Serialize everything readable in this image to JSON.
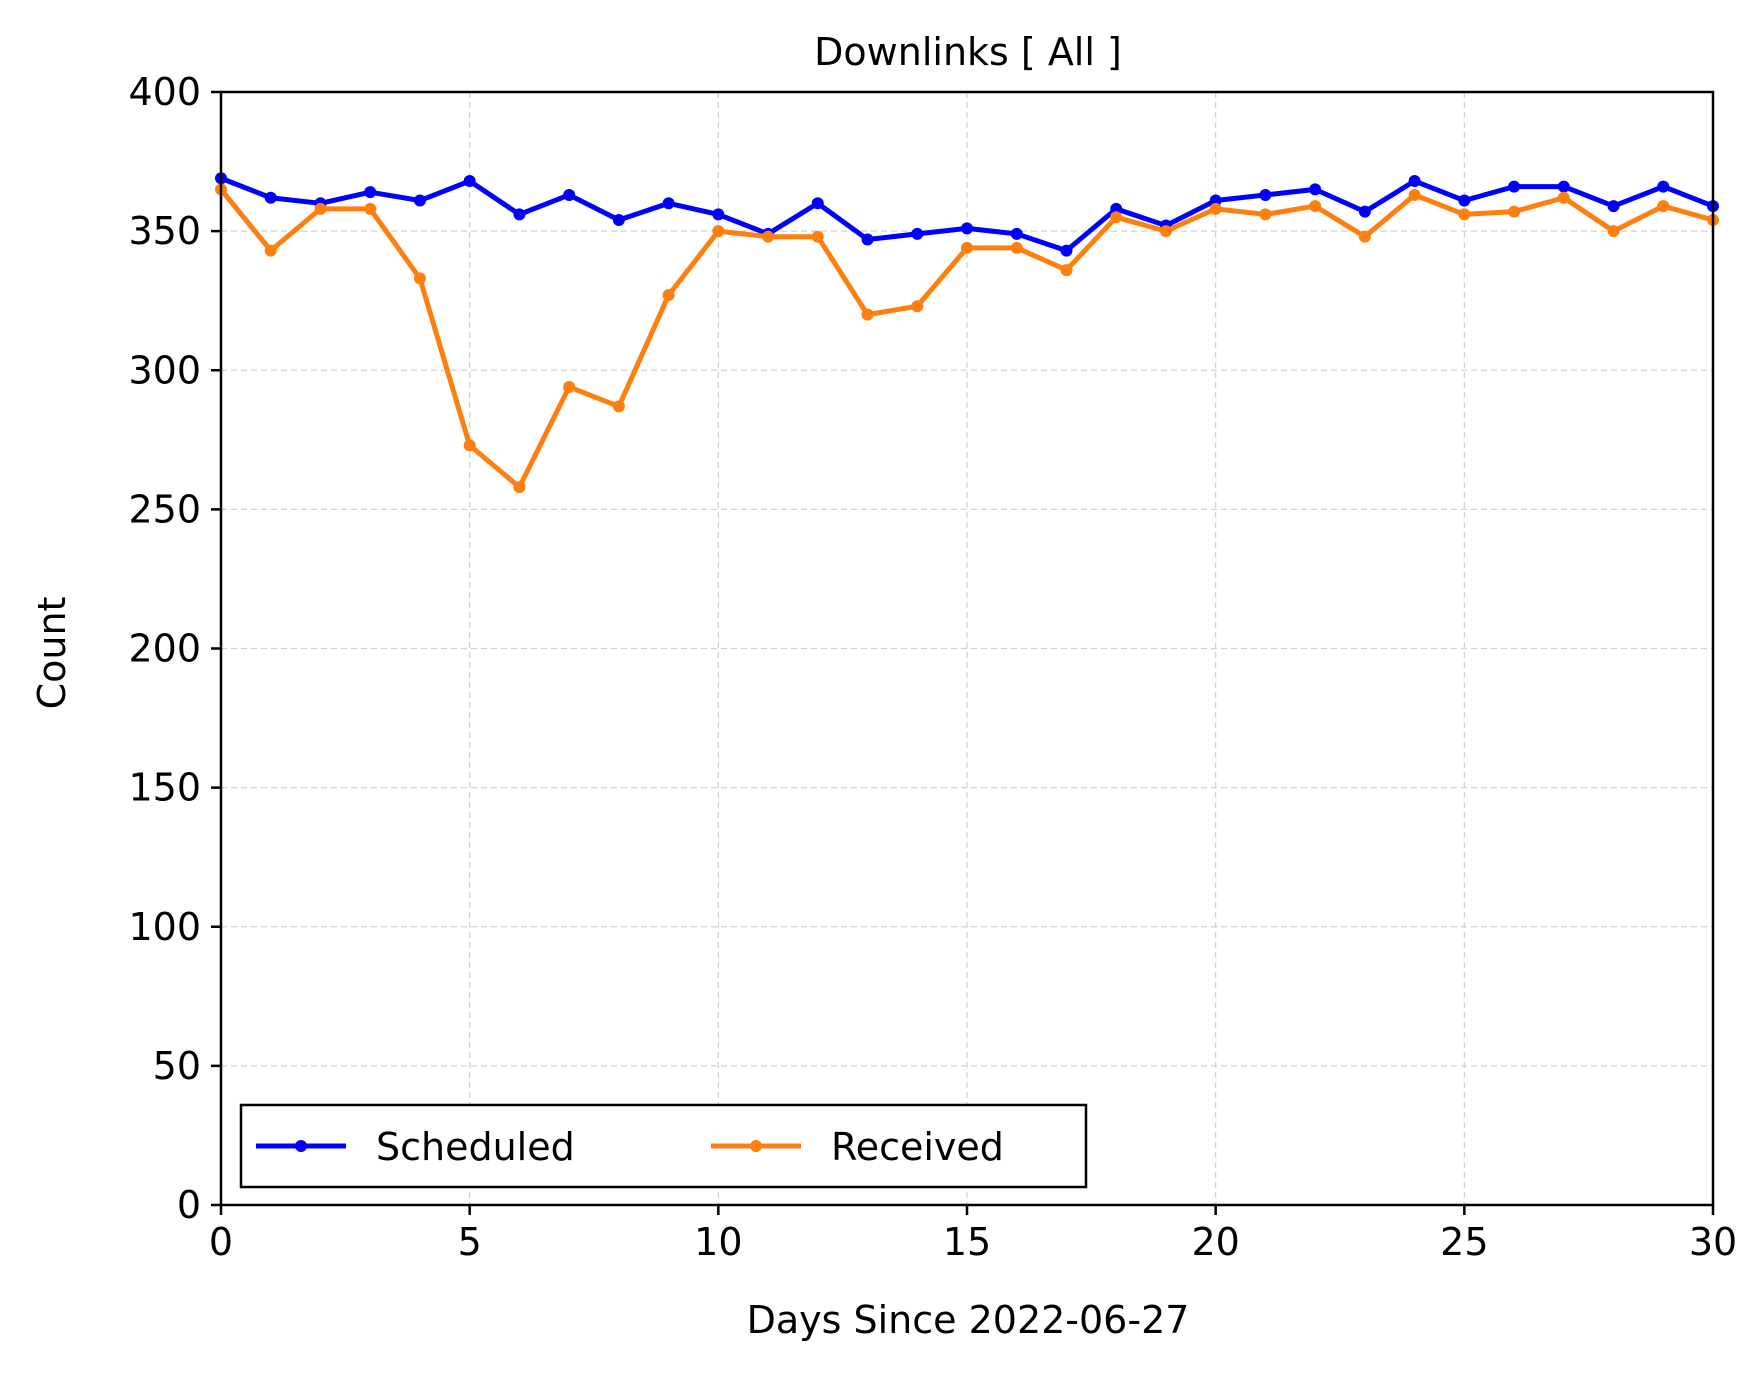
{
  "chart_data": {
    "type": "line",
    "title": "Downlinks [ All ]",
    "xlabel": "Days Since 2022-06-27",
    "ylabel": "Count",
    "xlim": [
      0,
      30
    ],
    "ylim": [
      0,
      400
    ],
    "xticks": [
      0,
      5,
      10,
      15,
      20,
      25,
      30
    ],
    "yticks": [
      0,
      50,
      100,
      150,
      200,
      250,
      300,
      350,
      400
    ],
    "grid": true,
    "legend": {
      "placement": "lower-left",
      "columns": 2
    },
    "x": [
      0,
      1,
      2,
      3,
      4,
      5,
      6,
      7,
      8,
      9,
      10,
      11,
      12,
      13,
      14,
      15,
      16,
      17,
      18,
      19,
      20,
      21,
      22,
      23,
      24,
      25,
      26,
      27,
      28,
      29,
      30
    ],
    "series": [
      {
        "name": "Scheduled",
        "color": "#0000ff",
        "values": [
          369,
          362,
          360,
          364,
          361,
          368,
          356,
          363,
          354,
          360,
          356,
          349,
          360,
          347,
          349,
          351,
          349,
          343,
          358,
          352,
          361,
          363,
          365,
          357,
          368,
          361,
          366,
          366,
          359,
          366,
          359
        ]
      },
      {
        "name": "Received",
        "color": "#ff7f0e",
        "values": [
          365,
          343,
          358,
          358,
          333,
          273,
          258,
          294,
          287,
          327,
          350,
          348,
          348,
          320,
          323,
          344,
          344,
          336,
          355,
          350,
          358,
          356,
          359,
          348,
          363,
          356,
          357,
          362,
          350,
          359,
          354
        ]
      }
    ]
  }
}
